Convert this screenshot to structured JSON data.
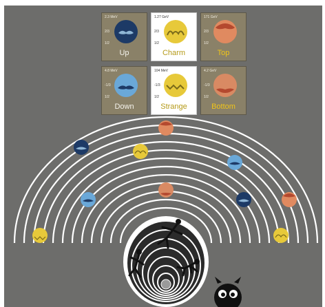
{
  "cards": [
    {
      "id": "up",
      "name": "Up",
      "mass": "2.3 MeV",
      "charge": "2/3",
      "spin": "1/2",
      "style": "dark",
      "color": "#1d3a66",
      "mustache": "#8fb6d6"
    },
    {
      "id": "charm",
      "name": "Charm",
      "mass": "1.27 GeV",
      "charge": "2/3",
      "spin": "1/2",
      "style": "white",
      "color": "#e7c93a",
      "mustache": "#7a6a1a"
    },
    {
      "id": "top",
      "name": "Top",
      "mass": "171 GeV",
      "charge": "2/3",
      "spin": "1/2",
      "style": "dark",
      "color": "#e08a60",
      "mustache": "#b4492f"
    },
    {
      "id": "down",
      "name": "Down",
      "mass": "4.8 MeV",
      "charge": "-1/3",
      "spin": "1/2",
      "style": "dark",
      "color": "#6aa8d8",
      "mustache": "#1d3a66"
    },
    {
      "id": "strange",
      "name": "Strange",
      "mass": "104 MeV",
      "charge": "-1/3",
      "spin": "1/2",
      "style": "white",
      "color": "#e7c93a",
      "mustache": "#7a6a1a"
    },
    {
      "id": "bottom",
      "name": "Bottom",
      "mass": "4.2 GeV",
      "charge": "-1/3",
      "spin": "1/2",
      "style": "gold",
      "color": "#d98a63",
      "mustache": "#b4492f"
    }
  ],
  "colors": {
    "background": "#6d6d6b",
    "rings": "#ffffff",
    "card_bg": "#8a8168"
  }
}
